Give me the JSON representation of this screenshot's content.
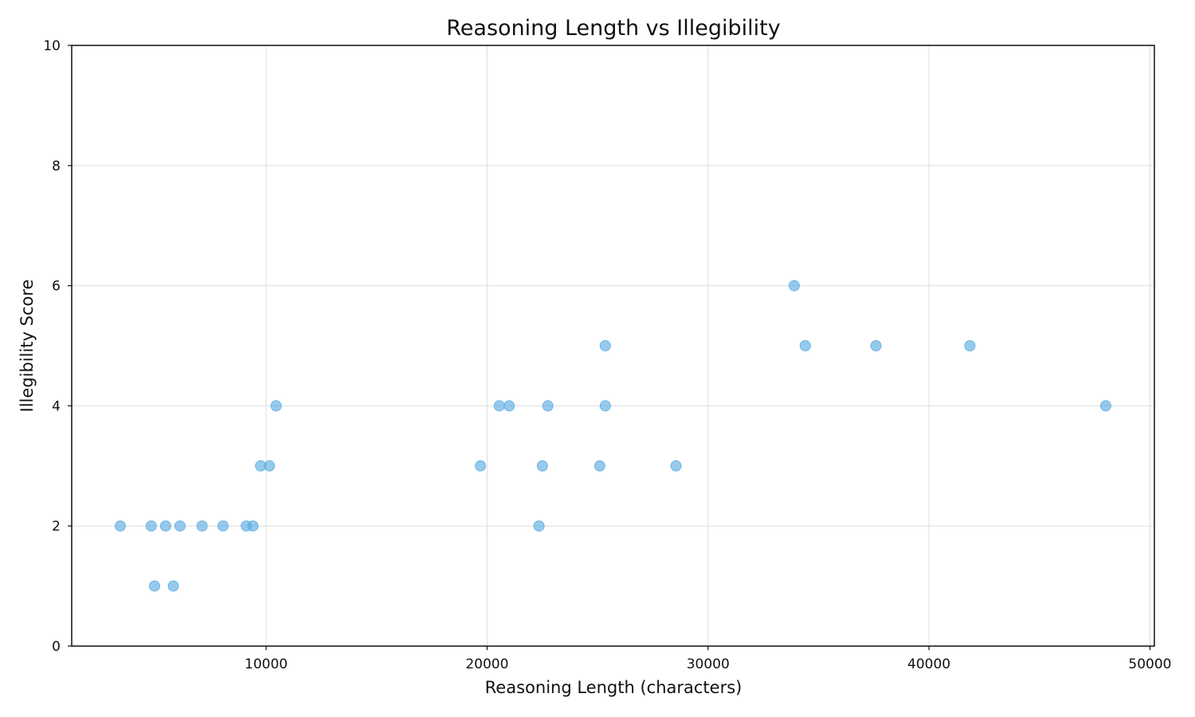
{
  "chart_data": {
    "type": "scatter",
    "title": "Reasoning Length vs Illegibility",
    "xlabel": "Reasoning Length (characters)",
    "ylabel": "Illegibility Score",
    "xlim": [
      1200,
      50200
    ],
    "ylim": [
      0,
      10
    ],
    "x_ticks": [
      10000,
      20000,
      30000,
      40000,
      50000
    ],
    "y_ticks": [
      0,
      2,
      4,
      6,
      8,
      10
    ],
    "grid": true,
    "marker_color": "#5dade2",
    "series": [
      {
        "points": [
          [
            3400,
            2
          ],
          [
            4800,
            2
          ],
          [
            5450,
            2
          ],
          [
            6100,
            2
          ],
          [
            7100,
            2
          ],
          [
            8050,
            2
          ],
          [
            9100,
            2
          ],
          [
            9400,
            2
          ],
          [
            4950,
            1
          ],
          [
            5800,
            1
          ],
          [
            9750,
            3
          ],
          [
            10150,
            3
          ],
          [
            10450,
            4
          ],
          [
            19700,
            3
          ],
          [
            20550,
            4
          ],
          [
            21000,
            4
          ],
          [
            22350,
            2
          ],
          [
            22500,
            3
          ],
          [
            22750,
            4
          ],
          [
            25100,
            3
          ],
          [
            25350,
            4
          ],
          [
            25350,
            5
          ],
          [
            28550,
            3
          ],
          [
            33900,
            6
          ],
          [
            34400,
            5
          ],
          [
            37600,
            5
          ],
          [
            41850,
            5
          ],
          [
            48000,
            4
          ]
        ]
      }
    ]
  }
}
